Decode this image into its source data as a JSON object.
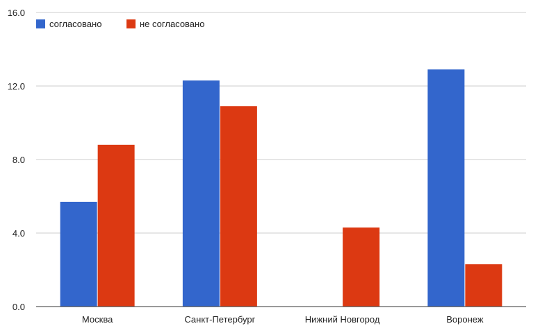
{
  "chart_data": {
    "type": "bar",
    "categories": [
      "Москва",
      "Санкт-Петербург",
      "Нижний Новгород",
      "Воронеж"
    ],
    "series": [
      {
        "name": "согласовано",
        "color": "#3366cc",
        "values": [
          5.7,
          12.3,
          0,
          12.9
        ]
      },
      {
        "name": "не согласовано",
        "color": "#dc3912",
        "values": [
          8.8,
          10.9,
          4.3,
          2.3
        ]
      }
    ],
    "yticks": [
      "0.0",
      "4.0",
      "8.0",
      "12.0",
      "16.0"
    ],
    "ylim": [
      0,
      16
    ],
    "grid": true,
    "legend_position": "top-left"
  }
}
